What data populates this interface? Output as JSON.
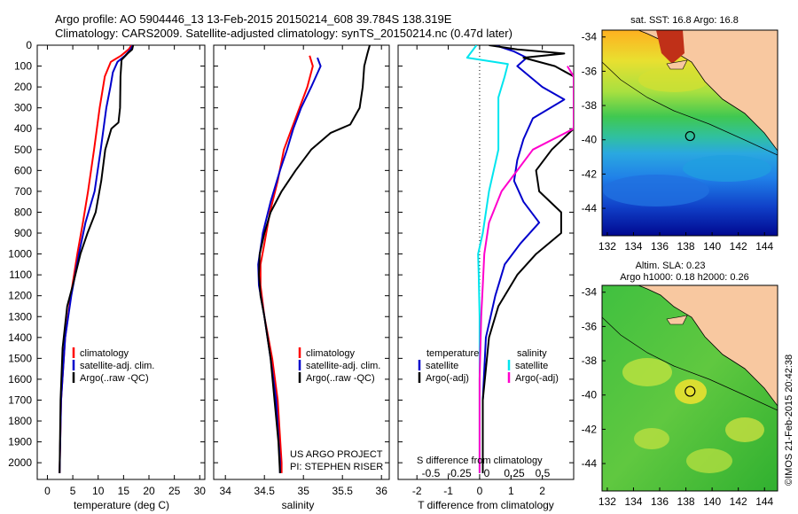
{
  "header": {
    "line1": "Argo profile: AO 5904446_13 13-Feb-2015 20150214_608 39.784S 138.319E",
    "line2": "Climatology: CARS2009. Satellite-adjusted climatology: synTS_20150214.nc (0.47d later)"
  },
  "colors": {
    "climatology": "#ff0000",
    "satellite": "#0000cc",
    "argo": "#000000",
    "sat_s": "#00e5ee",
    "argo_s": "#ff00cc"
  },
  "chart_data": [
    {
      "type": "line",
      "name": "temperature",
      "xlabel": "temperature (deg C)",
      "ylabel": "",
      "xlim": [
        -2,
        31
      ],
      "ylim": [
        2080,
        0
      ],
      "xticks": [
        "0",
        "5",
        "10",
        "15",
        "20",
        "25",
        "30"
      ],
      "xtick_values": [
        0,
        5,
        10,
        15,
        20,
        25,
        30
      ],
      "yticks": [
        "0",
        "100",
        "200",
        "300",
        "400",
        "500",
        "600",
        "700",
        "800",
        "900",
        "1000",
        "1100",
        "1200",
        "1300",
        "1400",
        "1500",
        "1600",
        "1700",
        "1800",
        "1900",
        "2000"
      ],
      "ytick_values": [
        0,
        100,
        200,
        300,
        400,
        500,
        600,
        700,
        800,
        900,
        1000,
        1100,
        1200,
        1300,
        1400,
        1500,
        1600,
        1700,
        1800,
        1900,
        2000
      ],
      "legend": [
        "climatology",
        "satellite-adj. clim.",
        "Argo(..raw -QC)"
      ],
      "series": [
        {
          "color": "climatology",
          "points": [
            [
              16.6,
              0
            ],
            [
              16.0,
              20
            ],
            [
              14.5,
              50
            ],
            [
              12.5,
              80
            ],
            [
              11.3,
              150
            ],
            [
              10.3,
              300
            ],
            [
              9.2,
              500
            ],
            [
              8.0,
              700
            ],
            [
              7.0,
              850
            ],
            [
              5.9,
              1000
            ],
            [
              4.6,
              1200
            ],
            [
              3.5,
              1400
            ],
            [
              2.7,
              1700
            ],
            [
              2.4,
              2050
            ]
          ]
        },
        {
          "color": "satellite",
          "points": [
            [
              16.8,
              0
            ],
            [
              16.4,
              20
            ],
            [
              15.3,
              50
            ],
            [
              13.8,
              80
            ],
            [
              12.9,
              130
            ],
            [
              12.4,
              200
            ],
            [
              11.6,
              300
            ],
            [
              10.5,
              500
            ],
            [
              9.3,
              700
            ],
            [
              7.5,
              850
            ],
            [
              6.2,
              1000
            ],
            [
              4.7,
              1200
            ],
            [
              3.5,
              1400
            ],
            [
              2.7,
              1700
            ],
            [
              2.4,
              2050
            ]
          ]
        },
        {
          "color": "argo",
          "points": [
            [
              16.9,
              0
            ],
            [
              16.7,
              20
            ],
            [
              15.8,
              40
            ],
            [
              14.6,
              70
            ],
            [
              14.4,
              150
            ],
            [
              14.3,
              300
            ],
            [
              14.0,
              370
            ],
            [
              12.6,
              400
            ],
            [
              11.4,
              500
            ],
            [
              10.6,
              650
            ],
            [
              9.5,
              800
            ],
            [
              7.9,
              900
            ],
            [
              6.5,
              1000
            ],
            [
              5.0,
              1150
            ],
            [
              3.9,
              1250
            ],
            [
              3.0,
              1450
            ],
            [
              2.6,
              1700
            ],
            [
              2.4,
              2050
            ]
          ]
        }
      ]
    },
    {
      "type": "line",
      "name": "salinity",
      "xlabel": "salinity",
      "ylabel": "",
      "xlim": [
        33.85,
        36.1
      ],
      "ylim": [
        2080,
        0
      ],
      "xticks": [
        "34",
        "34.5",
        "35",
        "35.5",
        "36"
      ],
      "xtick_values": [
        34,
        34.5,
        35,
        35.5,
        36
      ],
      "legend": [
        "climatology",
        "satellite-adj. clim.",
        "Argo(..raw -QC)"
      ],
      "annotation": [
        "US ARGO PROJECT",
        "PI: STEPHEN RISER"
      ],
      "series": [
        {
          "color": "climatology",
          "points": [
            [
              35.08,
              50
            ],
            [
              35.12,
              100
            ],
            [
              35.05,
              200
            ],
            [
              34.95,
              300
            ],
            [
              34.85,
              400
            ],
            [
              34.75,
              500
            ],
            [
              34.67,
              650
            ],
            [
              34.57,
              800
            ],
            [
              34.5,
              950
            ],
            [
              34.45,
              1050
            ],
            [
              34.45,
              1150
            ],
            [
              34.5,
              1300
            ],
            [
              34.6,
              1500
            ],
            [
              34.67,
              1700
            ],
            [
              34.72,
              2000
            ],
            [
              34.72,
              2050
            ]
          ]
        },
        {
          "color": "satellite",
          "points": [
            [
              35.18,
              60
            ],
            [
              35.22,
              100
            ],
            [
              35.1,
              200
            ],
            [
              34.97,
              300
            ],
            [
              34.87,
              400
            ],
            [
              34.79,
              500
            ],
            [
              34.7,
              600
            ],
            [
              34.58,
              750
            ],
            [
              34.48,
              900
            ],
            [
              34.42,
              1050
            ],
            [
              34.43,
              1150
            ],
            [
              34.5,
              1300
            ],
            [
              34.58,
              1500
            ],
            [
              34.65,
              1700
            ],
            [
              34.7,
              2000
            ],
            [
              34.7,
              2050
            ]
          ]
        },
        {
          "color": "argo",
          "points": [
            [
              35.85,
              0
            ],
            [
              35.82,
              40
            ],
            [
              35.78,
              100
            ],
            [
              35.76,
              200
            ],
            [
              35.72,
              300
            ],
            [
              35.6,
              380
            ],
            [
              35.35,
              420
            ],
            [
              35.1,
              500
            ],
            [
              34.9,
              600
            ],
            [
              34.72,
              700
            ],
            [
              34.58,
              800
            ],
            [
              34.5,
              900
            ],
            [
              34.44,
              1000
            ],
            [
              34.43,
              1100
            ],
            [
              34.45,
              1200
            ],
            [
              34.5,
              1300
            ],
            [
              34.58,
              1500
            ],
            [
              34.63,
              1700
            ],
            [
              34.68,
              1900
            ],
            [
              34.7,
              2050
            ]
          ]
        }
      ]
    },
    {
      "type": "line",
      "name": "difference",
      "xlabel": "T difference from climatology",
      "xlabel2": "S difference from climatology",
      "ylabel": "",
      "xlim": [
        -2.6,
        3.0
      ],
      "ylim": [
        2080,
        0
      ],
      "xticks": [
        "-2",
        "-1",
        "0",
        "1",
        "2"
      ],
      "xtick_values": [
        -2,
        -1,
        0,
        1,
        2
      ],
      "xticks2": [
        "-0.5",
        "-0.25",
        "0",
        "0.25",
        "0.5"
      ],
      "legend_headers": [
        "temperature",
        "salinity"
      ],
      "legend": [
        "satellite",
        "Argo(-adj)",
        "satellite",
        "Argo(-adj)"
      ],
      "series": [
        {
          "color": "satellite",
          "points": [
            [
              0.5,
              0
            ],
            [
              1.1,
              30
            ],
            [
              1.5,
              60
            ],
            [
              1.2,
              100
            ],
            [
              2.0,
              200
            ],
            [
              2.7,
              260
            ],
            [
              1.7,
              350
            ],
            [
              1.4,
              450
            ],
            [
              1.2,
              550
            ],
            [
              1.1,
              650
            ],
            [
              1.4,
              750
            ],
            [
              1.9,
              850
            ],
            [
              1.3,
              950
            ],
            [
              0.8,
              1050
            ],
            [
              0.5,
              1200
            ],
            [
              0.2,
              1400
            ],
            [
              0.1,
              1700
            ],
            [
              0.1,
              2050
            ]
          ]
        },
        {
          "color": "argo",
          "points": [
            [
              0.3,
              0
            ],
            [
              1.2,
              20
            ],
            [
              2.7,
              40
            ],
            [
              1.4,
              60
            ],
            [
              2.4,
              100
            ],
            [
              3.0,
              150
            ],
            [
              3.0,
              400
            ],
            [
              2.3,
              500
            ],
            [
              1.8,
              600
            ],
            [
              1.9,
              700
            ],
            [
              2.6,
              800
            ],
            [
              2.6,
              900
            ],
            [
              1.8,
              1000
            ],
            [
              1.2,
              1100
            ],
            [
              0.6,
              1250
            ],
            [
              0.3,
              1400
            ],
            [
              0.1,
              1700
            ],
            [
              0.1,
              2050
            ]
          ]
        },
        {
          "color": "sat_s",
          "points": [
            [
              -0.1,
              0
            ],
            [
              -0.4,
              60
            ],
            [
              0.9,
              90
            ],
            [
              0.8,
              150
            ],
            [
              0.6,
              250
            ],
            [
              0.6,
              500
            ],
            [
              0.3,
              700
            ],
            [
              0.1,
              900
            ],
            [
              -0.05,
              1000
            ],
            [
              -0.03,
              1100
            ],
            [
              0.0,
              1300
            ],
            [
              0.0,
              1600
            ],
            [
              0.0,
              2050
            ]
          ]
        },
        {
          "color": "argo_s",
          "points": [
            [
              2.8,
              100
            ],
            [
              3.0,
              150
            ],
            [
              3.0,
              400
            ],
            [
              1.7,
              500
            ],
            [
              0.7,
              700
            ],
            [
              0.3,
              850
            ],
            [
              0.15,
              1000
            ],
            [
              0.1,
              1150
            ],
            [
              0.05,
              1300
            ],
            [
              0.0,
              1600
            ],
            [
              0.0,
              2050
            ]
          ]
        }
      ]
    }
  ],
  "maps": [
    {
      "title": "sat. SST: 16.8 Argo: 16.8",
      "xticks": [
        "132",
        "134",
        "136",
        "138",
        "140",
        "142",
        "144"
      ],
      "yticks": [
        "-34",
        "-36",
        "-38",
        "-40",
        "-42",
        "-44"
      ],
      "argo_lon": 138.319,
      "argo_lat": -39.784
    },
    {
      "title_line1": "Altim. SLA: 0.23",
      "title_line2": "Argo h1000: 0.18 h2000: 0.26",
      "xticks": [
        "132",
        "134",
        "136",
        "138",
        "140",
        "142",
        "144"
      ],
      "yticks": [
        "-34",
        "-36",
        "-38",
        "-40",
        "-42",
        "-44"
      ],
      "argo_lon": 138.319,
      "argo_lat": -39.784
    }
  ],
  "footer": {
    "stamp": "©IMOS 21-Feb-2015 20:42:38"
  }
}
